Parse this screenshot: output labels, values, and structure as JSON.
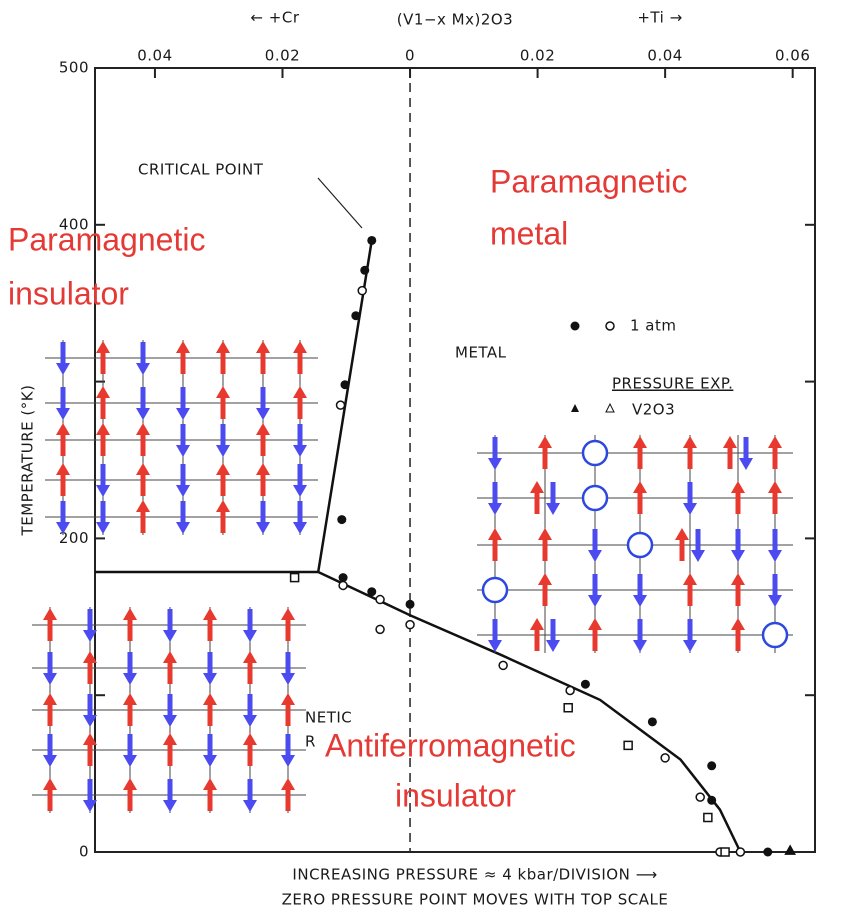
{
  "chart_data": {
    "type": "scatter",
    "top_left_label": "← +Cr",
    "top_center_label": "(V1−x Mx)2O3",
    "top_right_label": "+Ti →",
    "xlabel": "INCREASING PRESSURE ≈ 4 kbar/DIVISION ⟶",
    "xlabel2": "ZERO PRESSURE POINT MOVES WITH TOP SCALE",
    "ylabel": "TEMPERATURE (°K)",
    "xlim": [
      -0.0494,
      0.0635
    ],
    "xticks": [
      {
        "value": -0.04,
        "label": "0.04"
      },
      {
        "value": -0.02,
        "label": "0.02"
      },
      0,
      0.02,
      0.04,
      0.06
    ],
    "ylim": [
      0,
      500
    ],
    "yticks": [
      0,
      200,
      400,
      500
    ],
    "yminor_ticks": [
      100,
      300
    ],
    "zero_line_x": 0,
    "boundaries": [
      {
        "x": [
          -0.0494,
          -0.0144
        ],
        "values": [
          178.6,
          178.6
        ]
      },
      {
        "x": [
          -0.0144,
          -0.006
        ],
        "values": [
          178.6,
          390
        ]
      },
      {
        "x": [
          -0.0144,
          0,
          0.0141,
          0.0298,
          0.0424,
          0.0486,
          0.0518
        ],
        "values": [
          178.6,
          151,
          126,
          97,
          59,
          27,
          0
        ]
      }
    ],
    "series": [
      {
        "marker": "filled-circle",
        "color": "#111111",
        "x": [
          -0.006,
          -0.0071,
          -0.0085,
          -0.0102,
          -0.0107,
          -0.0105,
          -0.006,
          0,
          0.0275,
          0.038,
          0.0473,
          0.0473,
          0.0561
        ],
        "values": [
          390,
          371,
          342,
          298,
          212,
          175,
          166,
          158,
          107,
          83,
          55,
          33,
          0
        ]
      },
      {
        "marker": "open-circle",
        "color": "#111111",
        "x": [
          -0.0075,
          -0.0109,
          -0.0105,
          -0.0047,
          -0.0047,
          0,
          0.0146,
          0.0251,
          0.04,
          0.0455,
          0.0486,
          0.0518
        ],
        "values": [
          358,
          285,
          170,
          161,
          142,
          145,
          119,
          103,
          60,
          35,
          0,
          0
        ]
      },
      {
        "marker": "open-square",
        "color": "#111111",
        "x": [
          -0.0181,
          0.0248,
          0.0342,
          0.0467,
          0.0494
        ],
        "values": [
          175,
          92,
          68,
          22,
          0
        ]
      },
      {
        "marker": "filled-triangle",
        "color": "#111111",
        "x": [
          0.0596
        ],
        "values": [
          1
        ]
      }
    ],
    "annotations": [
      "CRITICAL POINT",
      "METAL",
      "NETIC",
      "R"
    ],
    "legend": {
      "atm": "1 atm",
      "pressure_title": "PRESSURE EXP.",
      "pressure": "V2O3"
    },
    "phase_labels": [
      [
        "Paramagnetic",
        "insulator"
      ],
      [
        "Paramagnetic",
        "metal"
      ],
      [
        "Antiferromagnetic",
        "insulator"
      ]
    ]
  }
}
